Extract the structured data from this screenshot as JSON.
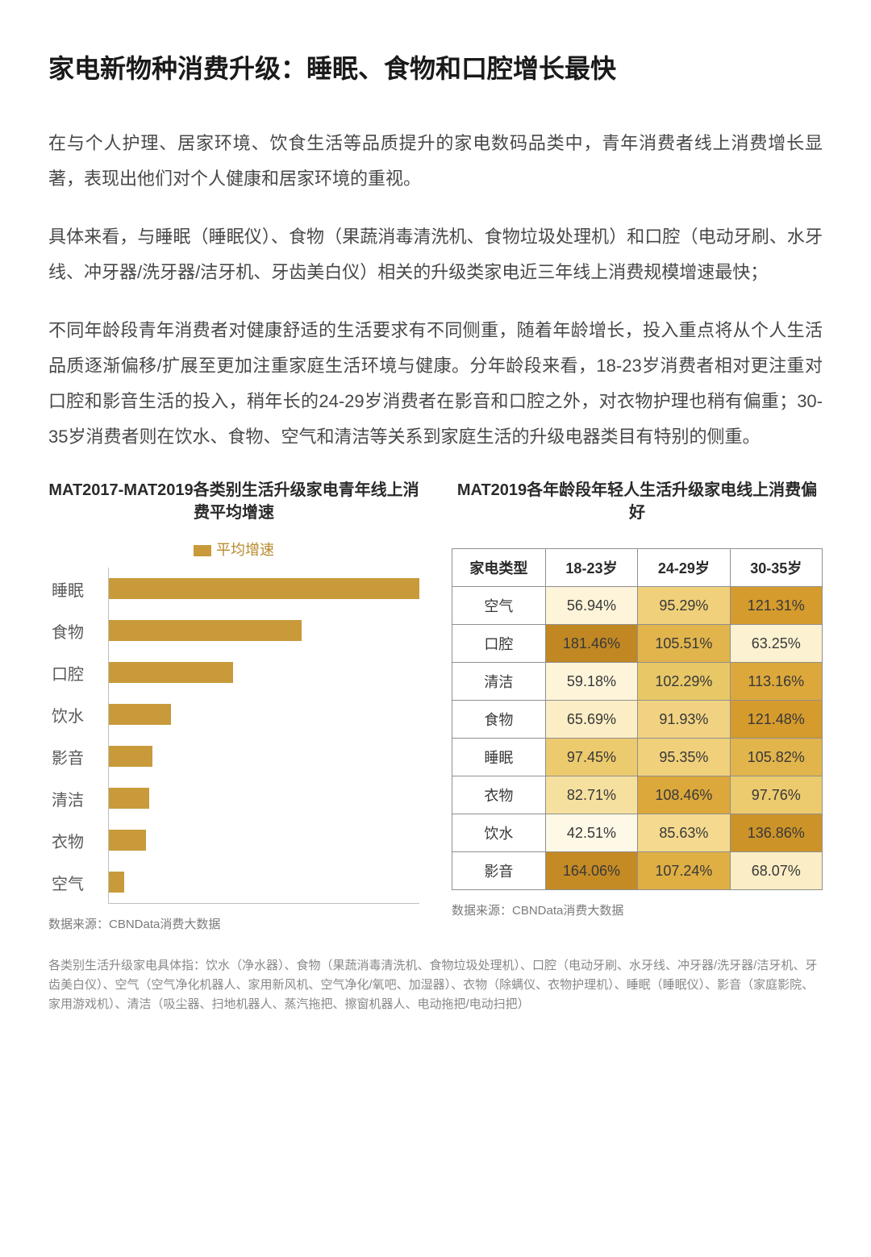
{
  "title": "家电新物种消费升级：睡眠、食物和口腔增长最快",
  "paragraphs": [
    "在与个人护理、居家环境、饮食生活等品质提升的家电数码品类中，青年消费者线上消费增长显著，表现出他们对个人健康和居家环境的重视。",
    "具体来看，与睡眠（睡眠仪）、食物（果蔬消毒清洗机、食物垃圾处理机）和口腔（电动牙刷、水牙线、冲牙器/洗牙器/洁牙机、牙齿美白仪）相关的升级类家电近三年线上消费规模增速最快；",
    "不同年龄段青年消费者对健康舒适的生活要求有不同侧重，随着年龄增长，投入重点将从个人生活品质逐渐偏移/扩展至更加注重家庭生活环境与健康。分年龄段来看，18-23岁消费者相对更注重对口腔和影音生活的投入，稍年长的24-29岁消费者在影音和口腔之外，对衣物护理也稍有偏重；30-35岁消费者则在饮水、食物、空气和清洁等关系到家庭生活的升级电器类目有特别的侧重。"
  ],
  "bar_chart": {
    "title": "MAT2017-MAT2019各类别生活升级家电青年线上消费平均增速",
    "legend_label": "平均增速",
    "legend_color": "#c89a3a",
    "bar_color": "#c89a3a",
    "axis_color": "#bfbfbf",
    "max_value": 100,
    "items": [
      {
        "label": "睡眠",
        "value": 100
      },
      {
        "label": "食物",
        "value": 62
      },
      {
        "label": "口腔",
        "value": 40
      },
      {
        "label": "饮水",
        "value": 20
      },
      {
        "label": "影音",
        "value": 14
      },
      {
        "label": "清洁",
        "value": 13
      },
      {
        "label": "衣物",
        "value": 12
      },
      {
        "label": "空气",
        "value": 5
      }
    ],
    "source": "数据来源：CBNData消费大数据"
  },
  "heat_table": {
    "title": "MAT2019各年龄段年轻人生活升级家电线上消费偏好",
    "header_row_label": "家电类型",
    "columns": [
      "18-23岁",
      "24-29岁",
      "30-35岁"
    ],
    "rows": [
      {
        "label": "空气",
        "cells": [
          {
            "v": "56.94%",
            "c": "#fdf4d9"
          },
          {
            "v": "95.29%",
            "c": "#f0d07a"
          },
          {
            "v": "121.31%",
            "c": "#d59b2d"
          }
        ]
      },
      {
        "label": "口腔",
        "cells": [
          {
            "v": "181.46%",
            "c": "#c08723"
          },
          {
            "v": "105.51%",
            "c": "#e1b44c"
          },
          {
            "v": "63.25%",
            "c": "#fcf1d0"
          }
        ]
      },
      {
        "label": "清洁",
        "cells": [
          {
            "v": "59.18%",
            "c": "#fdf4d9"
          },
          {
            "v": "102.29%",
            "c": "#e8c766"
          },
          {
            "v": "113.16%",
            "c": "#dca83c"
          }
        ]
      },
      {
        "label": "食物",
        "cells": [
          {
            "v": "65.69%",
            "c": "#fbedc4"
          },
          {
            "v": "91.93%",
            "c": "#f1d282"
          },
          {
            "v": "121.48%",
            "c": "#d59b2d"
          }
        ]
      },
      {
        "label": "睡眠",
        "cells": [
          {
            "v": "97.45%",
            "c": "#ecca6e"
          },
          {
            "v": "95.35%",
            "c": "#f0d07a"
          },
          {
            "v": "105.82%",
            "c": "#e1b44c"
          }
        ]
      },
      {
        "label": "衣物",
        "cells": [
          {
            "v": "82.71%",
            "c": "#f6e0a0"
          },
          {
            "v": "108.46%",
            "c": "#dca83c"
          },
          {
            "v": "97.76%",
            "c": "#ecca6e"
          }
        ]
      },
      {
        "label": "饮水",
        "cells": [
          {
            "v": "42.51%",
            "c": "#fef8e6"
          },
          {
            "v": "85.63%",
            "c": "#f4d98e"
          },
          {
            "v": "136.86%",
            "c": "#cc9328"
          }
        ]
      },
      {
        "label": "影音",
        "cells": [
          {
            "v": "164.06%",
            "c": "#c48a24"
          },
          {
            "v": "107.24%",
            "c": "#dfaf44"
          },
          {
            "v": "68.07%",
            "c": "#fbedc4"
          }
        ]
      }
    ],
    "source": "数据来源：CBNData消费大数据"
  },
  "footnote": "各类别生活升级家电具体指：饮水（净水器）、食物（果蔬消毒清洗机、食物垃圾处理机）、口腔（电动牙刷、水牙线、冲牙器/洗牙器/洁牙机、牙齿美白仪）、空气（空气净化机器人、家用新风机、空气净化/氧吧、加湿器）、衣物（除螨仪、衣物护理机）、睡眠（睡眠仪）、影音（家庭影院、家用游戏机）、清洁（吸尘器、扫地机器人、蒸汽拖把、擦窗机器人、电动拖把/电动扫把）"
}
